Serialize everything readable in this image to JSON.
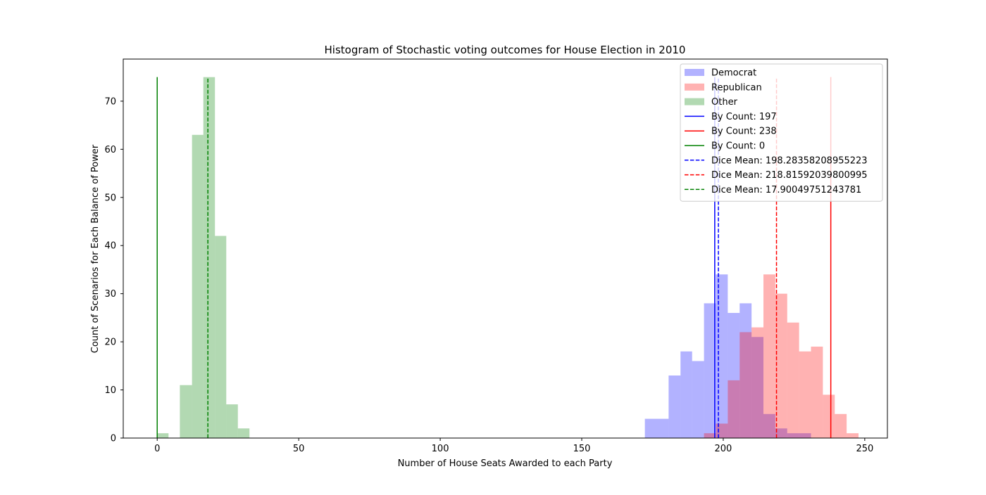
{
  "chart_data": {
    "type": "histogram",
    "title": "Histogram of Stochastic voting outcomes for House Election in 2010",
    "xlabel": "Number of House Seats Awarded to each Party",
    "ylabel": "Count of Scenarios for Each Balance of Power",
    "xlim": [
      -12,
      258
    ],
    "ylim": [
      0,
      78.75
    ],
    "xticks": [
      0,
      50,
      100,
      150,
      200,
      250
    ],
    "yticks": [
      0,
      10,
      20,
      30,
      40,
      50,
      60,
      70
    ],
    "legend_position": "top-right",
    "histograms": [
      {
        "name": "Democrat",
        "color": "#0000ff",
        "alpha": 0.3,
        "bins": [
          {
            "x0": 172.3,
            "x1": 176.5,
            "count": 4
          },
          {
            "x0": 176.5,
            "x1": 180.7,
            "count": 4
          },
          {
            "x0": 180.7,
            "x1": 184.9,
            "count": 13
          },
          {
            "x0": 184.9,
            "x1": 189.0,
            "count": 18
          },
          {
            "x0": 189.0,
            "x1": 193.2,
            "count": 16
          },
          {
            "x0": 193.2,
            "x1": 197.4,
            "count": 28
          },
          {
            "x0": 197.4,
            "x1": 201.6,
            "count": 34
          },
          {
            "x0": 201.6,
            "x1": 205.8,
            "count": 26
          },
          {
            "x0": 205.8,
            "x1": 210.0,
            "count": 28
          },
          {
            "x0": 210.0,
            "x1": 214.2,
            "count": 21
          },
          {
            "x0": 214.2,
            "x1": 218.4,
            "count": 5
          },
          {
            "x0": 218.4,
            "x1": 222.6,
            "count": 2
          },
          {
            "x0": 222.6,
            "x1": 226.8,
            "count": 1
          },
          {
            "x0": 226.8,
            "x1": 231.0,
            "count": 1
          }
        ]
      },
      {
        "name": "Republican",
        "color": "#ff0000",
        "alpha": 0.3,
        "bins": [
          {
            "x0": 193.2,
            "x1": 197.4,
            "count": 1
          },
          {
            "x0": 197.4,
            "x1": 201.6,
            "count": 3
          },
          {
            "x0": 201.6,
            "x1": 205.8,
            "count": 12
          },
          {
            "x0": 205.8,
            "x1": 210.0,
            "count": 22
          },
          {
            "x0": 210.0,
            "x1": 214.2,
            "count": 23
          },
          {
            "x0": 214.2,
            "x1": 218.4,
            "count": 34
          },
          {
            "x0": 218.4,
            "x1": 222.6,
            "count": 30
          },
          {
            "x0": 222.6,
            "x1": 226.8,
            "count": 24
          },
          {
            "x0": 226.8,
            "x1": 231.0,
            "count": 18
          },
          {
            "x0": 231.0,
            "x1": 235.2,
            "count": 19
          },
          {
            "x0": 235.2,
            "x1": 239.4,
            "count": 9
          },
          {
            "x0": 239.4,
            "x1": 243.6,
            "count": 5
          },
          {
            "x0": 243.6,
            "x1": 247.8,
            "count": 1
          }
        ]
      },
      {
        "name": "Other",
        "color": "#008000",
        "alpha": 0.3,
        "bins": [
          {
            "x0": 0.0,
            "x1": 4.0,
            "count": 1
          },
          {
            "x0": 8.0,
            "x1": 12.3,
            "count": 11
          },
          {
            "x0": 12.3,
            "x1": 16.3,
            "count": 63
          },
          {
            "x0": 16.3,
            "x1": 20.4,
            "count": 75
          },
          {
            "x0": 20.4,
            "x1": 24.4,
            "count": 42
          },
          {
            "x0": 24.4,
            "x1": 28.5,
            "count": 7
          },
          {
            "x0": 28.5,
            "x1": 32.6,
            "count": 2
          }
        ]
      }
    ],
    "vlines": [
      {
        "label": "By Count: 197",
        "x": 197,
        "ymax": 75,
        "color": "#0000ff",
        "dashed": false
      },
      {
        "label": "By Count: 238",
        "x": 238,
        "ymax": 75,
        "color": "#ff0000",
        "dashed": false
      },
      {
        "label": "By Count: 0",
        "x": 0,
        "ymax": 75,
        "color": "#008000",
        "dashed": false
      },
      {
        "label": "Dice Mean: 198.28358208955223",
        "x": 198.28358208955223,
        "ymax": 75,
        "color": "#0000ff",
        "dashed": true
      },
      {
        "label": "Dice Mean: 218.81592039800995",
        "x": 218.81592039800995,
        "ymax": 75,
        "color": "#ff0000",
        "dashed": true
      },
      {
        "label": "Dice Mean: 17.90049751243781",
        "x": 17.90049751243781,
        "ymax": 75,
        "color": "#008000",
        "dashed": true
      }
    ]
  }
}
